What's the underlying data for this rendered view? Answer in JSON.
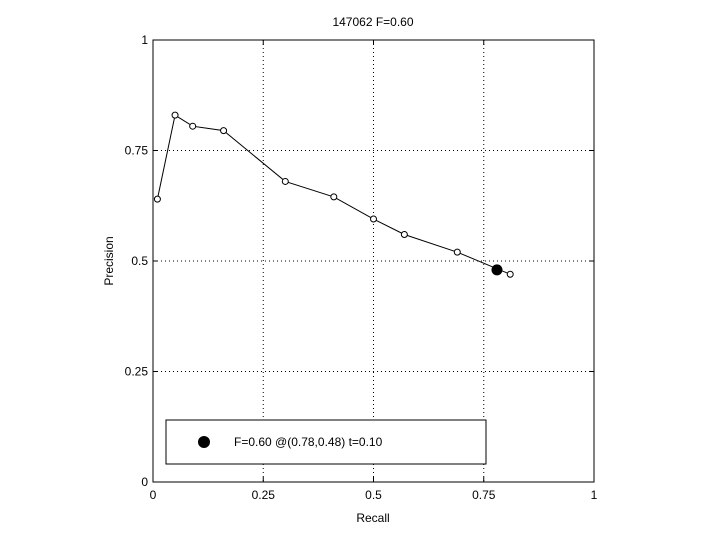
{
  "chart_data": {
    "type": "line",
    "title": "147062 F=0.60",
    "xlabel": "Recall",
    "ylabel": "Precision",
    "xlim": [
      0,
      1
    ],
    "ylim": [
      0,
      1
    ],
    "xticks": [
      0,
      0.25,
      0.5,
      0.75,
      1
    ],
    "yticks": [
      0,
      0.25,
      0.5,
      0.75,
      1
    ],
    "xtick_labels": [
      "0",
      "0.25",
      "0.5",
      "0.75",
      "1"
    ],
    "ytick_labels": [
      "0",
      "0.25",
      "0.5",
      "0.75",
      "1"
    ],
    "grid": true,
    "series": [
      {
        "x": [
          0.01,
          0.05,
          0.09,
          0.16,
          0.3,
          0.41,
          0.5,
          0.57,
          0.69,
          0.81
        ],
        "y": [
          0.64,
          0.83,
          0.805,
          0.795,
          0.68,
          0.645,
          0.595,
          0.56,
          0.52,
          0.47
        ],
        "marker": "open-circle",
        "color": "#000000"
      }
    ],
    "highlight": {
      "x": 0.78,
      "y": 0.48,
      "marker": "filled-circle",
      "color": "#000000"
    },
    "legend": {
      "position": "bottom-left",
      "text": "F=0.60 @(0.78,0.48) t=0.10"
    }
  }
}
